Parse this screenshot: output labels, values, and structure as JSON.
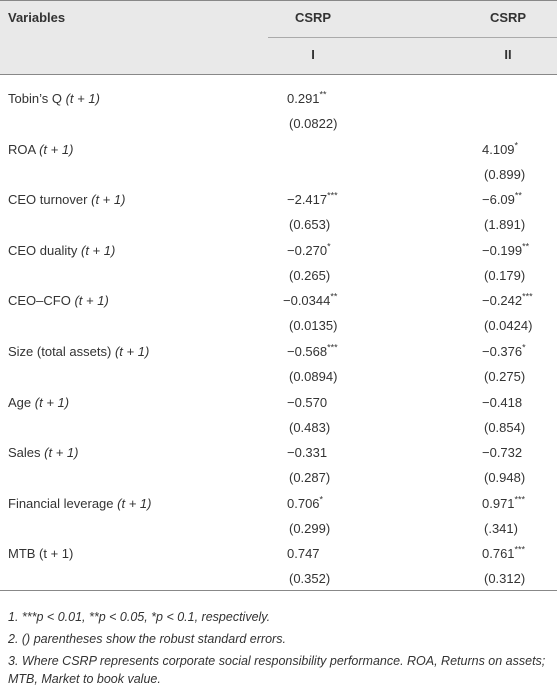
{
  "header": {
    "variables": "Variables",
    "columns": [
      {
        "group": "CSRP",
        "label": "I"
      },
      {
        "group": "CSRP",
        "label": "II"
      }
    ]
  },
  "rows": [
    {
      "variable": "Tobin’s Q",
      "period": "(t + 1)",
      "cells": [
        {
          "coef": "0.291",
          "sig": "**",
          "se": "(0.0822)"
        },
        null
      ]
    },
    {
      "variable": "ROA",
      "period": "(t + 1)",
      "cells": [
        null,
        {
          "coef": "4.109",
          "sig": "*",
          "se": "(0.899)"
        }
      ]
    },
    {
      "variable": "CEO turnover",
      "period": "(t + 1)",
      "cells": [
        {
          "coef": "−2.417",
          "sig": "***",
          "se": "(0.653)"
        },
        {
          "coef": "−6.09",
          "sig": "**",
          "se": "(1.891)"
        }
      ]
    },
    {
      "variable": "CEO duality",
      "period": "(t + 1)",
      "cells": [
        {
          "coef": "−0.270",
          "sig": "*",
          "se": "(0.265)"
        },
        {
          "coef": "−0.199",
          "sig": "**",
          "se": "(0.179)"
        }
      ]
    },
    {
      "variable": "CEO–CFO",
      "period": "(t + 1)",
      "cells": [
        {
          "coef": "−0.0344",
          "sig": "**",
          "se": "(0.0135)"
        },
        {
          "coef": "−0.242",
          "sig": "***",
          "se": "(0.0424)"
        }
      ]
    },
    {
      "variable": "Size (total assets)",
      "period": "(t + 1)",
      "cells": [
        {
          "coef": "−0.568",
          "sig": "***",
          "se": "(0.0894)"
        },
        {
          "coef": "−0.376",
          "sig": "*",
          "se": "(0.275)"
        }
      ]
    },
    {
      "variable": "Age",
      "period": "(t + 1)",
      "cells": [
        {
          "coef": "−0.570",
          "sig": null,
          "se": "(0.483)"
        },
        {
          "coef": "−0.418",
          "sig": null,
          "se": "(0.854)"
        }
      ]
    },
    {
      "variable": "Sales",
      "period": "(t + 1)",
      "cells": [
        {
          "coef": "−0.331",
          "sig": null,
          "se": "(0.287)"
        },
        {
          "coef": "−0.732",
          "sig": null,
          "se": "(0.948)"
        }
      ]
    },
    {
      "variable": "Financial leverage",
      "period": "(t + 1)",
      "cells": [
        {
          "coef": "0.706",
          "sig": "*",
          "se": "(0.299)"
        },
        {
          "coef": "0.971",
          "sig": "***",
          "se": "(.341)"
        }
      ]
    },
    {
      "variable": "MTB (t + 1)",
      "period": null,
      "cells": [
        {
          "coef": "0.747",
          "sig": null,
          "se": "(0.352)"
        },
        {
          "coef": "0.761",
          "sig": "***",
          "se": "(0.312)"
        }
      ]
    }
  ],
  "notes": [
    "1. ***p < 0.01, **p < 0.05, *p < 0.1, respectively.",
    "2. () parentheses show the robust standard errors.",
    "3. Where CSRP represents corporate social responsibility performance. ROA, Returns on assets; MTB, Market to book value."
  ]
}
